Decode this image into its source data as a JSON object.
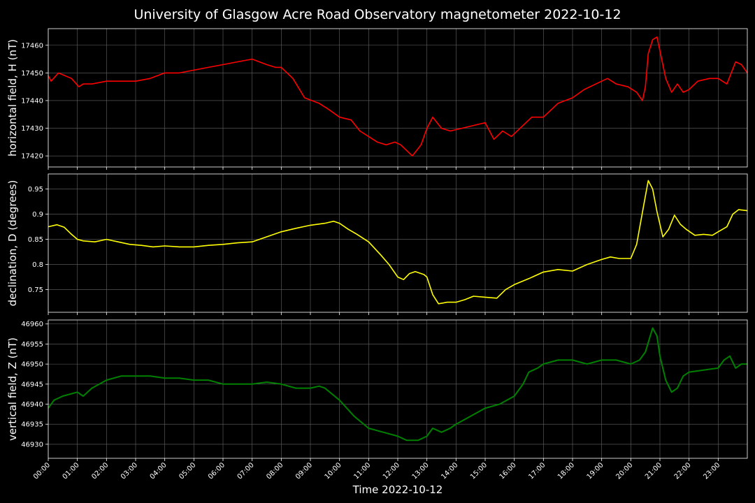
{
  "title": "University of Glasgow Acre Road Observatory magnetometer 2022-10-12",
  "colors": {
    "background": "#000000",
    "axes": "#ffffff",
    "grid": "#666666",
    "H": "#ff0000",
    "D": "#ffff00",
    "Z": "#008000"
  },
  "chart_data": [
    {
      "type": "line",
      "ylabel": "horizontal field, H (nT)",
      "ylim": [
        17416,
        17466
      ],
      "yticks": [
        17420,
        17430,
        17440,
        17450,
        17460
      ],
      "grid": true,
      "x_unit": "hours",
      "series": [
        {
          "color": "#ff0000",
          "x": [
            0,
            0.1,
            0.35,
            0.8,
            1.05,
            1.2,
            1.5,
            2.0,
            2.5,
            3.0,
            3.5,
            4.0,
            4.5,
            5.0,
            5.5,
            6.0,
            6.5,
            7.0,
            7.5,
            7.8,
            8.0,
            8.4,
            8.8,
            9.3,
            9.6,
            10.0,
            10.4,
            10.7,
            11.0,
            11.3,
            11.6,
            11.9,
            12.1,
            12.5,
            12.8,
            13.0,
            13.2,
            13.5,
            13.8,
            14.2,
            14.6,
            15.0,
            15.3,
            15.6,
            15.9,
            16.3,
            16.6,
            17.0,
            17.5,
            18.0,
            18.4,
            18.8,
            19.2,
            19.5,
            19.9,
            20.2,
            20.4,
            20.5,
            20.6,
            20.75,
            20.9,
            21.0,
            21.2,
            21.4,
            21.6,
            21.8,
            22.0,
            22.3,
            22.7,
            23.0,
            23.3,
            23.6,
            23.8,
            24.0
          ],
          "y": [
            17449,
            17447,
            17450,
            17448,
            17445,
            17446,
            17446,
            17447,
            17447,
            17447,
            17448,
            17450,
            17450,
            17451,
            17452,
            17453,
            17454,
            17455,
            17453,
            17452,
            17452,
            17448,
            17441,
            17439,
            17437,
            17434,
            17433,
            17429,
            17427,
            17425,
            17424,
            17425,
            17424,
            17420,
            17424,
            17430,
            17434,
            17430,
            17429,
            17430,
            17431,
            17432,
            17426,
            17429,
            17427,
            17431,
            17434,
            17434,
            17439,
            17441,
            17444,
            17446,
            17448,
            17446,
            17445,
            17443,
            17440,
            17445,
            17457,
            17462,
            17463,
            17458,
            17448,
            17443,
            17446,
            17443,
            17444,
            17447,
            17448,
            17448,
            17446,
            17454,
            17453,
            17450
          ]
        }
      ]
    },
    {
      "type": "line",
      "ylabel": "declination, D (degrees)",
      "ylim": [
        0.705,
        0.98
      ],
      "yticks": [
        0.75,
        0.8,
        0.85,
        0.9,
        0.95
      ],
      "grid": true,
      "x_unit": "hours",
      "series": [
        {
          "color": "#ffff00",
          "x": [
            0,
            0.3,
            0.55,
            0.8,
            1.0,
            1.2,
            1.6,
            2.0,
            2.4,
            2.8,
            3.2,
            3.6,
            4.0,
            4.5,
            5.0,
            5.5,
            6.0,
            6.5,
            7.0,
            7.5,
            8.0,
            8.5,
            9.0,
            9.5,
            9.8,
            10.0,
            10.3,
            10.6,
            11.0,
            11.4,
            11.7,
            12.0,
            12.2,
            12.4,
            12.6,
            12.9,
            13.0,
            13.2,
            13.4,
            13.7,
            14.0,
            14.3,
            14.6,
            15.0,
            15.4,
            15.7,
            16.0,
            16.5,
            17.0,
            17.5,
            18.0,
            18.5,
            19.0,
            19.3,
            19.6,
            20.0,
            20.2,
            20.45,
            20.6,
            20.75,
            20.9,
            21.1,
            21.3,
            21.5,
            21.7,
            21.9,
            22.2,
            22.5,
            22.8,
            23.0,
            23.3,
            23.5,
            23.7,
            24.0
          ],
          "y": [
            0.875,
            0.879,
            0.874,
            0.86,
            0.85,
            0.847,
            0.845,
            0.85,
            0.845,
            0.84,
            0.838,
            0.835,
            0.837,
            0.835,
            0.835,
            0.838,
            0.84,
            0.843,
            0.845,
            0.855,
            0.865,
            0.872,
            0.878,
            0.882,
            0.886,
            0.882,
            0.87,
            0.86,
            0.845,
            0.82,
            0.8,
            0.775,
            0.77,
            0.782,
            0.786,
            0.78,
            0.775,
            0.74,
            0.722,
            0.725,
            0.725,
            0.73,
            0.737,
            0.735,
            0.733,
            0.75,
            0.76,
            0.772,
            0.785,
            0.79,
            0.787,
            0.8,
            0.81,
            0.815,
            0.812,
            0.812,
            0.84,
            0.92,
            0.967,
            0.95,
            0.905,
            0.855,
            0.87,
            0.898,
            0.88,
            0.87,
            0.858,
            0.86,
            0.858,
            0.865,
            0.875,
            0.9,
            0.909,
            0.907
          ]
        }
      ]
    },
    {
      "type": "line",
      "ylabel": "vertical field, Z (nT)",
      "ylim": [
        46926.5,
        46961
      ],
      "yticks": [
        46930,
        46935,
        46940,
        46945,
        46950,
        46955,
        46960
      ],
      "grid": true,
      "x_unit": "hours",
      "series": [
        {
          "color": "#008000",
          "x": [
            0,
            0.2,
            0.5,
            1.0,
            1.2,
            1.5,
            2.0,
            2.5,
            3.0,
            3.5,
            4.0,
            4.5,
            5.0,
            5.5,
            6.0,
            6.5,
            7.0,
            7.5,
            8.0,
            8.5,
            9.0,
            9.3,
            9.5,
            10.0,
            10.5,
            11.0,
            11.5,
            12.0,
            12.3,
            12.7,
            13.0,
            13.2,
            13.5,
            13.8,
            14.0,
            14.5,
            15.0,
            15.5,
            16.0,
            16.3,
            16.5,
            16.8,
            17.0,
            17.5,
            18.0,
            18.5,
            19.0,
            19.5,
            20.0,
            20.3,
            20.5,
            20.75,
            20.9,
            21.0,
            21.2,
            21.4,
            21.6,
            21.8,
            22.0,
            22.5,
            23.0,
            23.2,
            23.4,
            23.6,
            23.8,
            24.0
          ],
          "y": [
            46939,
            46941,
            46942,
            46943,
            46942,
            46944,
            46946,
            46947,
            46947,
            46947,
            46946.5,
            46946.5,
            46946,
            46946,
            46945,
            46945,
            46945,
            46945.5,
            46945,
            46944,
            46944,
            46944.5,
            46944,
            46941,
            46937,
            46934,
            46933,
            46932,
            46931,
            46931,
            46932,
            46934,
            46933,
            46934,
            46935,
            46937,
            46939,
            46940,
            46942,
            46945,
            46948,
            46949,
            46950,
            46951,
            46951,
            46950,
            46951,
            46951,
            46950,
            46951,
            46953,
            46959,
            46957,
            46952,
            46946,
            46943,
            46944,
            46947,
            46948,
            46948.5,
            46949,
            46951,
            46952,
            46949,
            46950,
            46950
          ]
        }
      ]
    }
  ],
  "x_axis": {
    "label": "Time 2022-10-12",
    "range": [
      0,
      24
    ],
    "tick_labels": [
      "00:00",
      "01:00",
      "02:00",
      "03:00",
      "04:00",
      "05:00",
      "06:00",
      "07:00",
      "08:00",
      "09:00",
      "10:00",
      "11:00",
      "12:00",
      "13:00",
      "14:00",
      "15:00",
      "16:00",
      "17:00",
      "18:00",
      "19:00",
      "20:00",
      "21:00",
      "22:00",
      "23:00"
    ]
  }
}
